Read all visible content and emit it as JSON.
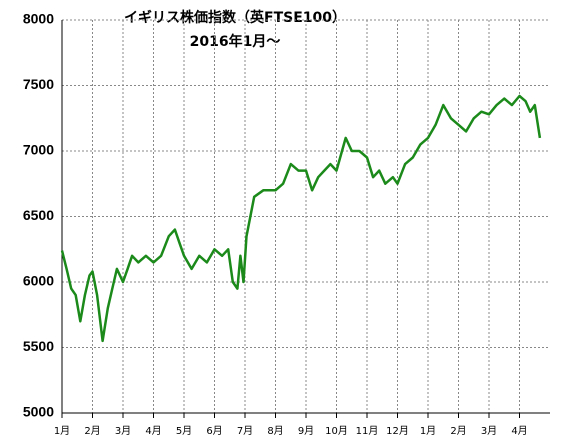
{
  "chart_data": {
    "type": "line",
    "title": "イギリス株価指数（英FTSE100）",
    "subtitle": "2016年1月～",
    "color": "#1b8a1b",
    "x": [
      0,
      0.15,
      0.3,
      0.45,
      0.6,
      0.75,
      0.9,
      1.0,
      1.15,
      1.33,
      1.5,
      1.65,
      1.8,
      2.0,
      2.15,
      2.3,
      2.5,
      2.75,
      3.0,
      3.25,
      3.5,
      3.7,
      3.85,
      4.0,
      4.25,
      4.5,
      4.75,
      5.0,
      5.25,
      5.45,
      5.6,
      5.75,
      5.85,
      5.95,
      6.05,
      6.3,
      6.6,
      7.0,
      7.25,
      7.5,
      7.75,
      8.0,
      8.2,
      8.4,
      8.6,
      8.8,
      9.0,
      9.3,
      9.5,
      9.75,
      10.0,
      10.2,
      10.4,
      10.6,
      10.85,
      11.0,
      11.25,
      11.5,
      11.75,
      12.0,
      12.25,
      12.5,
      12.75,
      13.0,
      13.25,
      13.5,
      13.75,
      14.0,
      14.25,
      14.5,
      14.75,
      15.0,
      15.2,
      15.35,
      15.5,
      15.67
    ],
    "values": [
      6240,
      6100,
      5950,
      5900,
      5700,
      5900,
      6050,
      6080,
      5900,
      5550,
      5800,
      5950,
      6100,
      6000,
      6100,
      6200,
      6150,
      6200,
      6150,
      6200,
      6350,
      6400,
      6300,
      6200,
      6100,
      6200,
      6150,
      6250,
      6200,
      6250,
      6000,
      5950,
      6200,
      6000,
      6350,
      6650,
      6700,
      6700,
      6750,
      6900,
      6850,
      6850,
      6700,
      6800,
      6850,
      6900,
      6850,
      7100,
      7000,
      7000,
      6950,
      6800,
      6850,
      6750,
      6800,
      6750,
      6900,
      6950,
      7050,
      7100,
      7200,
      7350,
      7250,
      7200,
      7150,
      7250,
      7300,
      7280,
      7350,
      7400,
      7350,
      7420,
      7380,
      7300,
      7350,
      7100
    ],
    "xlim": [
      0,
      16
    ],
    "xticks": [
      {
        "value": 0,
        "label": "1月"
      },
      {
        "value": 1,
        "label": "2月"
      },
      {
        "value": 2,
        "label": "3月"
      },
      {
        "value": 3,
        "label": "4月"
      },
      {
        "value": 4,
        "label": "5月"
      },
      {
        "value": 5,
        "label": "6月"
      },
      {
        "value": 6,
        "label": "7月"
      },
      {
        "value": 7,
        "label": "8月"
      },
      {
        "value": 8,
        "label": "9月"
      },
      {
        "value": 9,
        "label": "10月"
      },
      {
        "value": 10,
        "label": "11月"
      },
      {
        "value": 11,
        "label": "12月"
      },
      {
        "value": 12,
        "label": "1月"
      },
      {
        "value": 13,
        "label": "2月"
      },
      {
        "value": 14,
        "label": "3月"
      },
      {
        "value": 15,
        "label": "4月"
      }
    ],
    "ylim": [
      5000,
      8000
    ],
    "yticks": [
      5000,
      5500,
      6000,
      6500,
      7000,
      7500,
      8000
    ],
    "grid": true
  }
}
